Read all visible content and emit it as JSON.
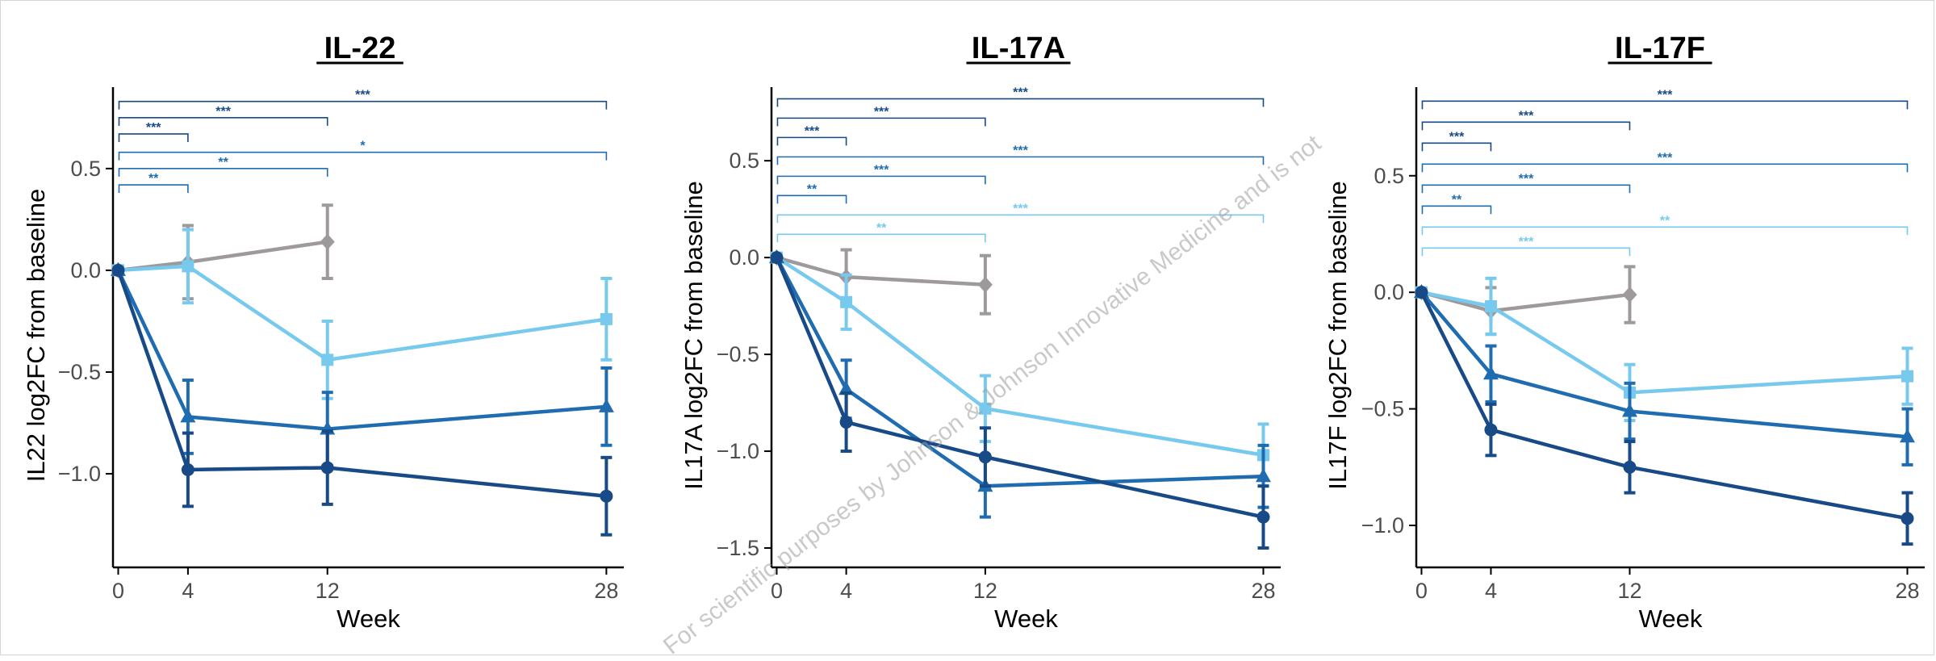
{
  "watermark": "For scientific purposes by Johnson & Johnson Innovative Medicine and is not",
  "colors": {
    "grey": "#9e9a9b",
    "light_blue": "#77c9ee",
    "mid_blue": "#1f6cb0",
    "dark_blue": "#174a86"
  },
  "chart_data": [
    {
      "type": "line",
      "title": "IL-22",
      "xlabel": "Week",
      "ylabel": "IL22 log2FC from baseline",
      "x_ticks": [
        0,
        4,
        12,
        28
      ],
      "y_ticks": [
        0.5,
        0.0,
        -0.5,
        -1.0
      ],
      "y_tick_labels": [
        "0.5",
        "0.0",
        "−0.5",
        "−1.0"
      ],
      "xlim": [
        -0.3,
        29
      ],
      "ylim": [
        -1.46,
        0.9
      ],
      "series": [
        {
          "marker": "diamond",
          "color": "#9e9a9b",
          "x": [
            0,
            4,
            12
          ],
          "y": [
            0.0,
            0.04,
            0.14
          ],
          "err": [
            0.0,
            0.18,
            0.18
          ]
        },
        {
          "marker": "square",
          "color": "#77c9ee",
          "x": [
            0,
            4,
            12,
            28
          ],
          "y": [
            0.0,
            0.02,
            -0.44,
            -0.24
          ],
          "err": [
            0.0,
            0.18,
            0.19,
            0.2
          ]
        },
        {
          "marker": "triangle",
          "color": "#1f6cb0",
          "x": [
            0,
            4,
            12,
            28
          ],
          "y": [
            0.0,
            -0.72,
            -0.78,
            -0.67
          ],
          "err": [
            0.0,
            0.18,
            0.18,
            0.19
          ]
        },
        {
          "marker": "circle",
          "color": "#174a86",
          "x": [
            0,
            4,
            12,
            28
          ],
          "y": [
            0.0,
            -0.98,
            -0.97,
            -1.11
          ],
          "err": [
            0.0,
            0.18,
            0.18,
            0.19
          ]
        }
      ],
      "brackets": [
        {
          "x_end": 28,
          "y": 0.83,
          "label": "***",
          "color": "#174a86"
        },
        {
          "x_end": 12,
          "y": 0.75,
          "label": "***",
          "color": "#174a86"
        },
        {
          "x_end": 4,
          "y": 0.67,
          "label": "***",
          "color": "#174a86"
        },
        {
          "x_end": 28,
          "y": 0.58,
          "label": "*",
          "color": "#1f6cb0"
        },
        {
          "x_end": 12,
          "y": 0.5,
          "label": "**",
          "color": "#1f6cb0"
        },
        {
          "x_end": 4,
          "y": 0.42,
          "label": "**",
          "color": "#1f6cb0"
        }
      ]
    },
    {
      "type": "line",
      "title": "IL-17A",
      "xlabel": "Week",
      "ylabel": "IL17A log2FC from baseline",
      "x_ticks": [
        0,
        4,
        12,
        28
      ],
      "y_ticks": [
        0.5,
        0.0,
        -0.5,
        -1.0,
        -1.5
      ],
      "y_tick_labels": [
        "0.5",
        "0.0",
        "−0.5",
        "−1.0",
        "−1.5"
      ],
      "xlim": [
        -0.3,
        29
      ],
      "ylim": [
        -1.6,
        0.88
      ],
      "series": [
        {
          "marker": "diamond",
          "color": "#9e9a9b",
          "x": [
            0,
            4,
            12
          ],
          "y": [
            0.0,
            -0.1,
            -0.14
          ],
          "err": [
            0.0,
            0.14,
            0.15
          ]
        },
        {
          "marker": "square",
          "color": "#77c9ee",
          "x": [
            0,
            4,
            12,
            28
          ],
          "y": [
            0.0,
            -0.23,
            -0.78,
            -1.02
          ],
          "err": [
            0.0,
            0.14,
            0.17,
            0.16
          ]
        },
        {
          "marker": "triangle",
          "color": "#1f6cb0",
          "x": [
            0,
            4,
            12,
            28
          ],
          "y": [
            0.0,
            -0.68,
            -1.18,
            -1.13
          ],
          "err": [
            0.0,
            0.15,
            0.16,
            0.16
          ]
        },
        {
          "marker": "circle",
          "color": "#174a86",
          "x": [
            0,
            4,
            12,
            28
          ],
          "y": [
            0.0,
            -0.85,
            -1.03,
            -1.34
          ],
          "err": [
            0.0,
            0.15,
            0.15,
            0.16
          ]
        }
      ],
      "brackets": [
        {
          "x_end": 28,
          "y": 0.82,
          "label": "***",
          "color": "#174a86"
        },
        {
          "x_end": 12,
          "y": 0.72,
          "label": "***",
          "color": "#174a86"
        },
        {
          "x_end": 4,
          "y": 0.62,
          "label": "***",
          "color": "#174a86"
        },
        {
          "x_end": 28,
          "y": 0.52,
          "label": "***",
          "color": "#1f6cb0"
        },
        {
          "x_end": 12,
          "y": 0.42,
          "label": "***",
          "color": "#1f6cb0"
        },
        {
          "x_end": 4,
          "y": 0.32,
          "label": "**",
          "color": "#1f6cb0"
        },
        {
          "x_end": 28,
          "y": 0.22,
          "label": "***",
          "color": "#77c9ee"
        },
        {
          "x_end": 12,
          "y": 0.12,
          "label": "**",
          "color": "#77c9ee"
        }
      ]
    },
    {
      "type": "line",
      "title": "IL-17F",
      "xlabel": "Week",
      "ylabel": "IL17F log2FC from baseline",
      "x_ticks": [
        0,
        4,
        12,
        28
      ],
      "y_ticks": [
        0.5,
        0.0,
        -0.5,
        -1.0
      ],
      "y_tick_labels": [
        "0.5",
        "0.0",
        "−0.5",
        "−1.0"
      ],
      "xlim": [
        -0.3,
        29
      ],
      "ylim": [
        -1.18,
        0.88
      ],
      "series": [
        {
          "marker": "diamond",
          "color": "#9e9a9b",
          "x": [
            0,
            4,
            12
          ],
          "y": [
            0.0,
            -0.08,
            -0.01
          ],
          "err": [
            0.0,
            0.1,
            0.12
          ]
        },
        {
          "marker": "square",
          "color": "#77c9ee",
          "x": [
            0,
            4,
            12,
            28
          ],
          "y": [
            0.0,
            -0.06,
            -0.43,
            -0.36
          ],
          "err": [
            0.0,
            0.12,
            0.12,
            0.12
          ]
        },
        {
          "marker": "triangle",
          "color": "#1f6cb0",
          "x": [
            0,
            4,
            12,
            28
          ],
          "y": [
            0.0,
            -0.35,
            -0.51,
            -0.62
          ],
          "err": [
            0.0,
            0.12,
            0.12,
            0.12
          ]
        },
        {
          "marker": "circle",
          "color": "#174a86",
          "x": [
            0,
            4,
            12,
            28
          ],
          "y": [
            0.0,
            -0.59,
            -0.75,
            -0.97
          ],
          "err": [
            0.0,
            0.11,
            0.11,
            0.11
          ]
        }
      ],
      "brackets": [
        {
          "x_end": 28,
          "y": 0.82,
          "label": "***",
          "color": "#174a86"
        },
        {
          "x_end": 12,
          "y": 0.73,
          "label": "***",
          "color": "#174a86"
        },
        {
          "x_end": 4,
          "y": 0.64,
          "label": "***",
          "color": "#174a86"
        },
        {
          "x_end": 28,
          "y": 0.55,
          "label": "***",
          "color": "#1f6cb0"
        },
        {
          "x_end": 12,
          "y": 0.46,
          "label": "***",
          "color": "#1f6cb0"
        },
        {
          "x_end": 4,
          "y": 0.37,
          "label": "**",
          "color": "#1f6cb0"
        },
        {
          "x_end": 28,
          "y": 0.28,
          "label": "**",
          "color": "#77c9ee"
        },
        {
          "x_end": 12,
          "y": 0.19,
          "label": "***",
          "color": "#77c9ee"
        }
      ]
    }
  ]
}
